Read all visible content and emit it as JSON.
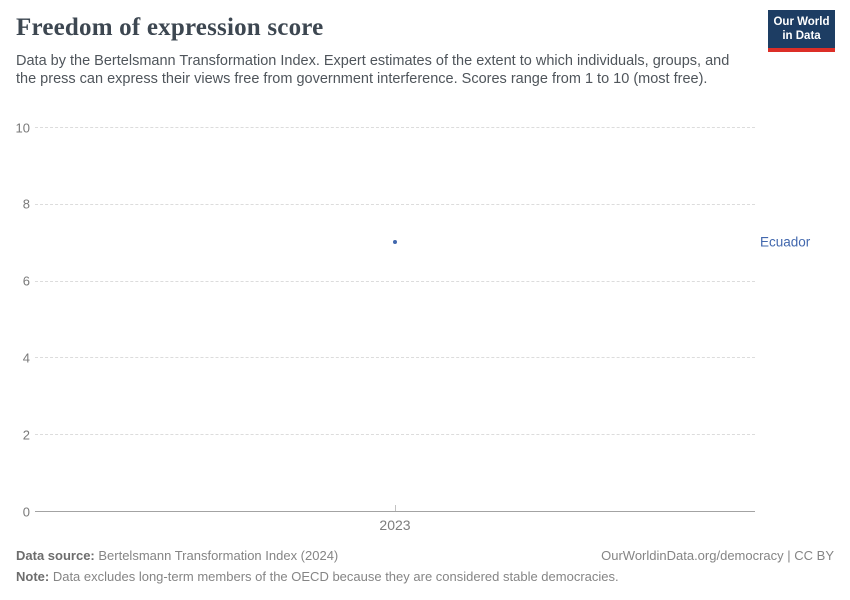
{
  "header": {
    "title": "Freedom of expression score",
    "subtitle": "Data by the Bertelsmann Transformation Index. Expert estimates of the extent to which individuals, groups, and the press can express their views free from government interference. Scores range from 1 to 10 (most free).",
    "logo_line1": "Our World",
    "logo_line2": "in Data"
  },
  "chart_data": {
    "type": "scatter",
    "title": "Freedom of expression score",
    "series": [
      {
        "name": "Ecuador",
        "x": [
          2023
        ],
        "values": [
          7
        ]
      }
    ],
    "x_ticks": [
      "2023"
    ],
    "y_ticks": [
      0,
      2,
      4,
      6,
      8,
      10
    ],
    "ylim": [
      0,
      10
    ],
    "xlabel": "",
    "ylabel": "",
    "grid": "horizontal-dashed",
    "legend_position": "right-entity-label",
    "entity_label": "Ecuador",
    "point_color": "#4268ae",
    "label_color": "#4268ae"
  },
  "footer": {
    "datasource_label": "Data source:",
    "datasource_value": " Bertelsmann Transformation Index (2024)",
    "attribution": "OurWorldinData.org/democracy | CC BY",
    "note_label": "Note:",
    "note_value": " Data excludes long-term members of the OECD because they are considered stable democracies."
  },
  "colors": {
    "logo_bg": "#1d3d63",
    "logo_stripe": "#dc2e27",
    "gridline": "#dcdcdc",
    "axis_line": "#a3a3a3",
    "tick_text": "#797979"
  }
}
